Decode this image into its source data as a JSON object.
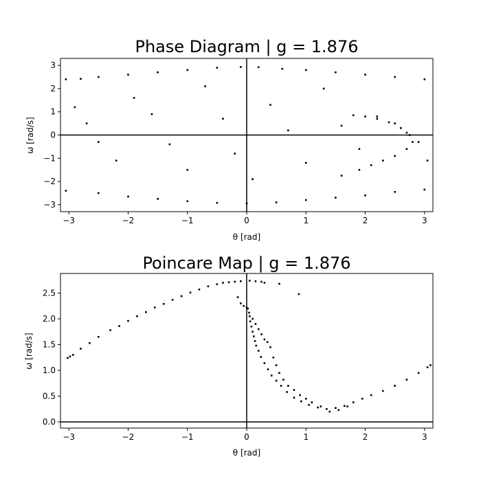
{
  "chart_data": [
    {
      "type": "scatter",
      "title": "Phase Diagram | g = 1.876",
      "xlabel": "θ [rad]",
      "ylabel": "ω [rad/s]",
      "xlim": [
        -3.14159,
        3.14159
      ],
      "ylim": [
        -3.3,
        3.3
      ],
      "x_ticks": [
        -3,
        -2,
        -1,
        0,
        1,
        2,
        3
      ],
      "y_ticks": [
        -3,
        -2,
        -1,
        0,
        1,
        2,
        3
      ],
      "grid": false,
      "reference_lines": {
        "x": 0,
        "y": 0
      },
      "marker_color": "#000000",
      "description_of_points": "dense chaotic scatter filling band bounded roughly by ω≈2.45 at θ=-π rising to ω≈2.95 near θ=0 and back to ω≈2.4 at θ=π (mirror below), with a denser arc on the right near θ 1.5–3",
      "series": [
        {
          "points": [
            [
              -3.05,
              2.4
            ],
            [
              -2.8,
              2.42
            ],
            [
              -2.5,
              2.5
            ],
            [
              -2.0,
              2.6
            ],
            [
              -1.5,
              2.7
            ],
            [
              -1.0,
              2.8
            ],
            [
              -0.5,
              2.9
            ],
            [
              -0.1,
              2.93
            ],
            [
              0.2,
              2.92
            ],
            [
              0.6,
              2.85
            ],
            [
              1.0,
              2.8
            ],
            [
              1.5,
              2.7
            ],
            [
              2.0,
              2.6
            ],
            [
              2.5,
              2.5
            ],
            [
              3.0,
              2.4
            ],
            [
              -3.05,
              -2.4
            ],
            [
              -2.5,
              -2.5
            ],
            [
              -2.0,
              -2.65
            ],
            [
              -1.5,
              -2.75
            ],
            [
              -1.0,
              -2.85
            ],
            [
              -0.5,
              -2.92
            ],
            [
              0.0,
              -2.95
            ],
            [
              0.5,
              -2.9
            ],
            [
              1.0,
              -2.8
            ],
            [
              1.5,
              -2.7
            ],
            [
              2.0,
              -2.6
            ],
            [
              2.5,
              -2.45
            ],
            [
              3.0,
              -2.35
            ],
            [
              -2.9,
              1.2
            ],
            [
              -2.7,
              0.5
            ],
            [
              -2.5,
              -0.3
            ],
            [
              -2.2,
              -1.1
            ],
            [
              -1.9,
              1.6
            ],
            [
              -1.6,
              0.9
            ],
            [
              -1.3,
              -0.4
            ],
            [
              -1.0,
              -1.5
            ],
            [
              -0.7,
              2.1
            ],
            [
              -0.4,
              0.7
            ],
            [
              -0.2,
              -0.8
            ],
            [
              0.1,
              -1.9
            ],
            [
              0.4,
              1.3
            ],
            [
              0.7,
              0.2
            ],
            [
              1.0,
              -1.2
            ],
            [
              1.3,
              2.0
            ],
            [
              1.6,
              0.4
            ],
            [
              1.9,
              -0.6
            ],
            [
              2.2,
              0.8
            ],
            [
              2.5,
              0.5
            ],
            [
              2.7,
              0.1
            ],
            [
              2.9,
              -0.3
            ],
            [
              3.05,
              -1.1
            ],
            [
              1.8,
              0.85
            ],
            [
              2.0,
              0.8
            ],
            [
              2.2,
              0.7
            ],
            [
              2.4,
              0.55
            ],
            [
              2.6,
              0.3
            ],
            [
              2.75,
              0.0
            ],
            [
              2.8,
              -0.3
            ],
            [
              2.7,
              -0.6
            ],
            [
              2.5,
              -0.9
            ],
            [
              2.3,
              -1.1
            ],
            [
              2.1,
              -1.3
            ],
            [
              1.9,
              -1.5
            ],
            [
              1.6,
              -1.75
            ]
          ]
        }
      ]
    },
    {
      "type": "scatter",
      "title": "Poincare Map | g = 1.876",
      "xlabel": "θ [rad]",
      "ylabel": "ω [rad/s]",
      "xlim": [
        -3.14159,
        3.14159
      ],
      "ylim": [
        -0.12,
        2.88
      ],
      "x_ticks": [
        -3,
        -2,
        -1,
        0,
        1,
        2,
        3
      ],
      "y_ticks": [
        0.0,
        0.5,
        1.0,
        1.5,
        2.0,
        2.5
      ],
      "grid": false,
      "reference_lines": {
        "x": 0,
        "y": 0
      },
      "marker_color": "#000000",
      "series": [
        {
          "points": [
            [
              -3.02,
              1.24
            ],
            [
              -2.98,
              1.27
            ],
            [
              -2.93,
              1.3
            ],
            [
              -2.8,
              1.42
            ],
            [
              -2.65,
              1.53
            ],
            [
              -2.5,
              1.65
            ],
            [
              -2.3,
              1.78
            ],
            [
              -2.15,
              1.86
            ],
            [
              -2.0,
              1.96
            ],
            [
              -1.85,
              2.05
            ],
            [
              -1.7,
              2.13
            ],
            [
              -1.55,
              2.22
            ],
            [
              -1.4,
              2.29
            ],
            [
              -1.25,
              2.37
            ],
            [
              -1.1,
              2.44
            ],
            [
              -0.95,
              2.51
            ],
            [
              -0.8,
              2.57
            ],
            [
              -0.65,
              2.63
            ],
            [
              -0.5,
              2.67
            ],
            [
              -0.4,
              2.7
            ],
            [
              -0.3,
              2.71
            ],
            [
              -0.2,
              2.72
            ],
            [
              -0.1,
              2.73
            ],
            [
              0.05,
              2.74
            ],
            [
              0.15,
              2.73
            ],
            [
              0.25,
              2.72
            ],
            [
              0.3,
              2.7
            ],
            [
              0.55,
              2.68
            ],
            [
              0.88,
              2.48
            ],
            [
              -0.15,
              2.42
            ],
            [
              -0.1,
              2.3
            ],
            [
              -0.05,
              2.25
            ],
            [
              0.0,
              2.22
            ],
            [
              0.02,
              2.2
            ],
            [
              0.04,
              2.12
            ],
            [
              0.05,
              2.05
            ],
            [
              0.06,
              1.95
            ],
            [
              0.08,
              1.85
            ],
            [
              0.1,
              1.75
            ],
            [
              0.12,
              1.66
            ],
            [
              0.14,
              1.57
            ],
            [
              0.16,
              1.48
            ],
            [
              0.2,
              1.38
            ],
            [
              0.24,
              1.26
            ],
            [
              0.3,
              1.14
            ],
            [
              0.36,
              1.02
            ],
            [
              0.42,
              0.9
            ],
            [
              0.5,
              0.8
            ],
            [
              0.58,
              0.7
            ],
            [
              0.68,
              0.58
            ],
            [
              0.8,
              0.47
            ],
            [
              0.92,
              0.4
            ],
            [
              1.05,
              0.33
            ],
            [
              1.2,
              0.28
            ],
            [
              1.35,
              0.25
            ],
            [
              1.5,
              0.27
            ],
            [
              1.65,
              0.31
            ],
            [
              1.8,
              0.38
            ],
            [
              1.95,
              0.45
            ],
            [
              2.1,
              0.52
            ],
            [
              2.3,
              0.6
            ],
            [
              2.5,
              0.7
            ],
            [
              2.7,
              0.82
            ],
            [
              2.9,
              0.95
            ],
            [
              3.05,
              1.06
            ],
            [
              3.1,
              1.1
            ],
            [
              0.1,
              2.0
            ],
            [
              0.15,
              1.9
            ],
            [
              0.2,
              1.8
            ],
            [
              0.25,
              1.7
            ],
            [
              0.3,
              1.6
            ],
            [
              0.35,
              1.55
            ],
            [
              0.4,
              1.45
            ],
            [
              0.45,
              1.25
            ],
            [
              0.5,
              1.1
            ],
            [
              0.55,
              0.95
            ],
            [
              0.62,
              0.82
            ],
            [
              0.7,
              0.7
            ],
            [
              0.8,
              0.62
            ],
            [
              0.9,
              0.52
            ],
            [
              1.0,
              0.45
            ],
            [
              1.1,
              0.38
            ],
            [
              1.25,
              0.3
            ],
            [
              1.4,
              0.2
            ],
            [
              1.55,
              0.23
            ],
            [
              1.7,
              0.3
            ]
          ]
        }
      ]
    }
  ]
}
